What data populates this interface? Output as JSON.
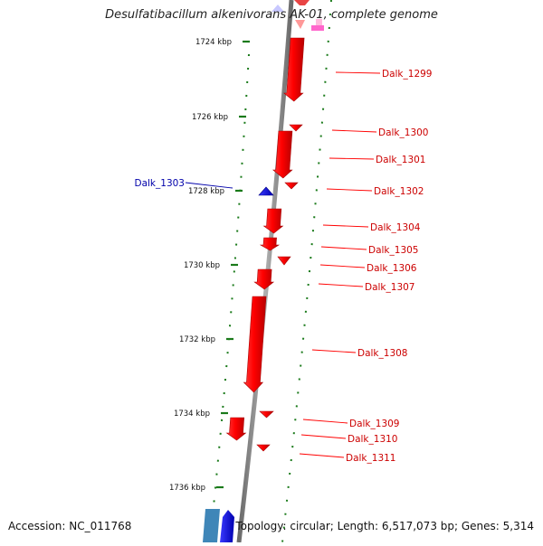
{
  "title": "Desulfatibacillum alkenivorans AK-01, complete genome",
  "accession": "Accession: NC_011768",
  "topology": "Topology: circular; Length: 6,517,073 bp; Genes: 5,314",
  "colors": {
    "backbone": "#8a8a8a",
    "forward_gene": "#ff0000",
    "forward_gene_label": "#cc0000",
    "reverse_gene": "#0000ee",
    "reverse_gene_label": "#0000aa",
    "tick": "#1a7a1a",
    "pink_feature": "#ff66cc",
    "pale_feature": "#c8c8ff",
    "teal_feature": "#3f86b8"
  },
  "scale_ticks": [
    "1724 kbp",
    "1726 kbp",
    "1728 kbp",
    "1730 kbp",
    "1732 kbp",
    "1734 kbp",
    "1736 kbp"
  ],
  "genes": [
    {
      "id": "Dalk_1299",
      "strand": "forward"
    },
    {
      "id": "Dalk_1300",
      "strand": "forward"
    },
    {
      "id": "Dalk_1301",
      "strand": "forward"
    },
    {
      "id": "Dalk_1302",
      "strand": "forward"
    },
    {
      "id": "Dalk_1303",
      "strand": "reverse"
    },
    {
      "id": "Dalk_1304",
      "strand": "forward"
    },
    {
      "id": "Dalk_1305",
      "strand": "forward"
    },
    {
      "id": "Dalk_1306",
      "strand": "forward"
    },
    {
      "id": "Dalk_1307",
      "strand": "forward"
    },
    {
      "id": "Dalk_1308",
      "strand": "forward"
    },
    {
      "id": "Dalk_1309",
      "strand": "forward"
    },
    {
      "id": "Dalk_1310",
      "strand": "forward"
    },
    {
      "id": "Dalk_1311",
      "strand": "forward"
    }
  ]
}
